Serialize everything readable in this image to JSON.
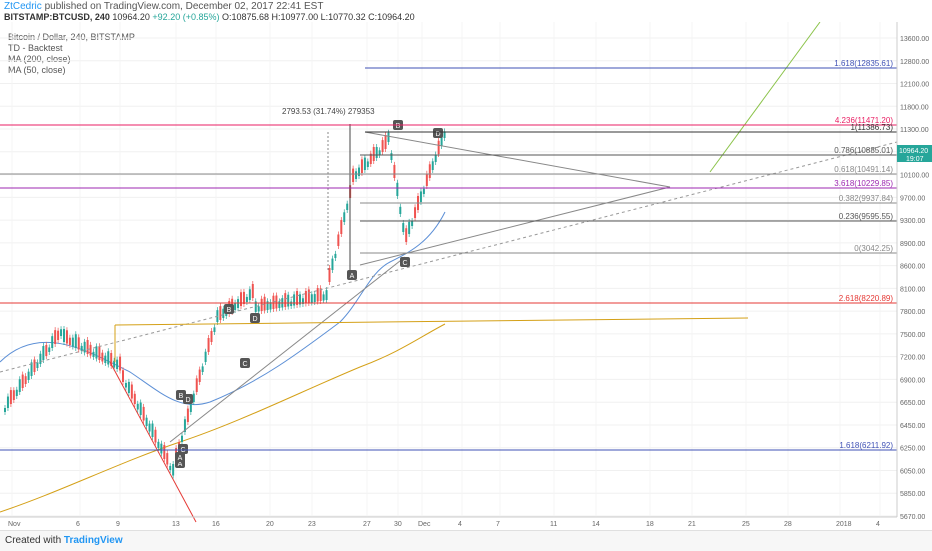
{
  "header": {
    "author": "ZtCedric",
    "published": "published on TradingView.com, December 02, 2017 22:41 EST",
    "symbol_line": "BITSTAMP:BTCUSD, 240",
    "last": "10964.20",
    "change": "+92.20 (+0.85%)",
    "ohlc": "O:10875.68 H:10977.00 L:10770.32 C:10964.20"
  },
  "legend": {
    "title": "Bitcoin / Dollar, 240, BITSTAMP",
    "items": [
      "TD - Backtest",
      "MA (200, close)",
      "MA (50, close)"
    ]
  },
  "price_axis": {
    "ticks": [
      "13600.00",
      "12800.00",
      "12100.00",
      "11800.00",
      "11300.00",
      "10700.00",
      "10100.00",
      "9700.00",
      "9300.00",
      "8900.00",
      "8600.00",
      "8100.00",
      "7800.00",
      "7500.00",
      "7200.00",
      "6900.00",
      "6650.00",
      "6450.00",
      "6250.00",
      "6050.00",
      "5850.00",
      "5670.00"
    ],
    "current_price": "10964.20",
    "current_time": "19:07"
  },
  "time_axis": {
    "ticks": [
      "Nov",
      "6",
      "9",
      "13",
      "16",
      "20",
      "23",
      "27",
      "30",
      "Dec",
      "4",
      "7",
      "11",
      "14",
      "18",
      "21",
      "25",
      "28",
      "2018",
      "4"
    ]
  },
  "levels": [
    {
      "label": "1.618(12835.61)",
      "color": "#3f51b5"
    },
    {
      "label": "4.236(11471.20)",
      "color": "#e91e63"
    },
    {
      "label": "1(11386.73)",
      "color": "#333333"
    },
    {
      "label": "0.786(10885.01)",
      "color": "#555555"
    },
    {
      "label": "0.618(10491.14)",
      "color": "#888888"
    },
    {
      "label": "3.618(10229.85)",
      "color": "#9c27b0"
    },
    {
      "label": "0.382(9937.84)",
      "color": "#888888"
    },
    {
      "label": "0.236(9595.55)",
      "color": "#555555"
    },
    {
      "label": "0(3042.25)",
      "color": "#888888"
    },
    {
      "label": "2.618(8220.89)",
      "color": "#e53935"
    },
    {
      "label": "1.618(6211.92)",
      "color": "#3f51b5"
    }
  ],
  "annotation": "2793.53 (31.74%) 279353",
  "pattern_labels": [
    "B",
    "D",
    "A",
    "C",
    "D",
    "B",
    "A",
    "C",
    "D",
    "B",
    "A",
    "C"
  ],
  "footer": {
    "created_with": "Created with",
    "brand": "TradingView"
  },
  "colors": {
    "up": "#26a69a",
    "down": "#ef5350",
    "ma50": "#5c8fd6",
    "ma200": "#d4a017"
  }
}
